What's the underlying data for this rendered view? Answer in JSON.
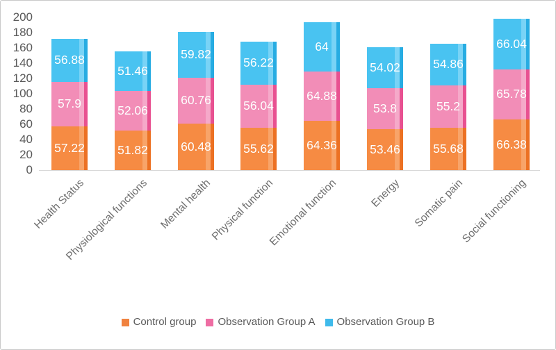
{
  "chart_data": {
    "type": "bar",
    "subtype": "stacked-column",
    "title": "",
    "xlabel": "",
    "ylabel": "",
    "ylim": [
      0,
      200
    ],
    "y_ticks": [
      0,
      20,
      40,
      60,
      80,
      100,
      120,
      140,
      160,
      180,
      200
    ],
    "grid": false,
    "legend_position": "bottom",
    "categories": [
      "Health Status",
      "Physiological functions",
      "Mental health",
      "Physical function",
      "Emotional function",
      "Energy",
      "Somatic pain",
      "Social functioning"
    ],
    "series": [
      {
        "name": "Control group",
        "values": [
          57.22,
          51.82,
          60.48,
          55.62,
          64.36,
          53.46,
          55.68,
          66.38
        ],
        "legend_color": "#F0823F",
        "color_main": "#F68B43",
        "color_light": "#F8A469",
        "color_dark": "#EC7123"
      },
      {
        "name": "Observation Group A",
        "values": [
          57.9,
          52.06,
          60.76,
          56.04,
          64.88,
          53.8,
          55.2,
          65.78
        ],
        "legend_color": "#EE6DA3",
        "color_main": "#F28DB7",
        "color_light": "#F5A9C9",
        "color_dark": "#E85191"
      },
      {
        "name": "Observation Group B",
        "values": [
          56.88,
          51.46,
          59.82,
          56.22,
          64,
          54.02,
          54.86,
          66.04
        ],
        "legend_color": "#3FBAEB",
        "color_main": "#49C3F1",
        "color_light": "#79D3F6",
        "color_dark": "#27ACE2"
      }
    ],
    "axis_text_color": "#595959",
    "category_text_color": "#6e6e6e",
    "data_label_color": "#ffffff",
    "baseline_color": "#d9d9d9"
  }
}
